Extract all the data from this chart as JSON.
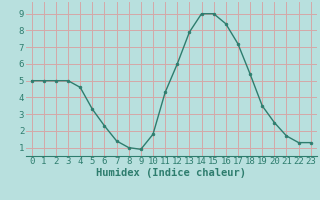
{
  "x": [
    0,
    1,
    2,
    3,
    4,
    5,
    6,
    7,
    8,
    9,
    10,
    11,
    12,
    13,
    14,
    15,
    16,
    17,
    18,
    19,
    20,
    21,
    22,
    23
  ],
  "y": [
    5.0,
    5.0,
    5.0,
    5.0,
    4.6,
    3.3,
    2.3,
    1.4,
    1.0,
    0.9,
    1.8,
    4.3,
    6.0,
    7.9,
    9.0,
    9.0,
    8.4,
    7.2,
    5.4,
    3.5,
    2.5,
    1.7,
    1.3,
    1.3
  ],
  "line_color": "#2e7d6e",
  "marker_color": "#2e7d6e",
  "bg_color": "#b8e0de",
  "grid_color": "#d4a8a8",
  "xlabel": "Humidex (Indice chaleur)",
  "xlabel_fontsize": 7.5,
  "ylabel_ticks": [
    1,
    2,
    3,
    4,
    5,
    6,
    7,
    8,
    9
  ],
  "xtick_labels": [
    "0",
    "1",
    "2",
    "3",
    "4",
    "5",
    "6",
    "7",
    "8",
    "9",
    "10",
    "11",
    "12",
    "13",
    "14",
    "15",
    "16",
    "17",
    "18",
    "19",
    "20",
    "21",
    "22",
    "23"
  ],
  "ylim": [
    0.5,
    9.7
  ],
  "xlim": [
    -0.5,
    23.5
  ],
  "tick_fontsize": 6.5,
  "line_width": 1.0,
  "marker_size": 2.0
}
